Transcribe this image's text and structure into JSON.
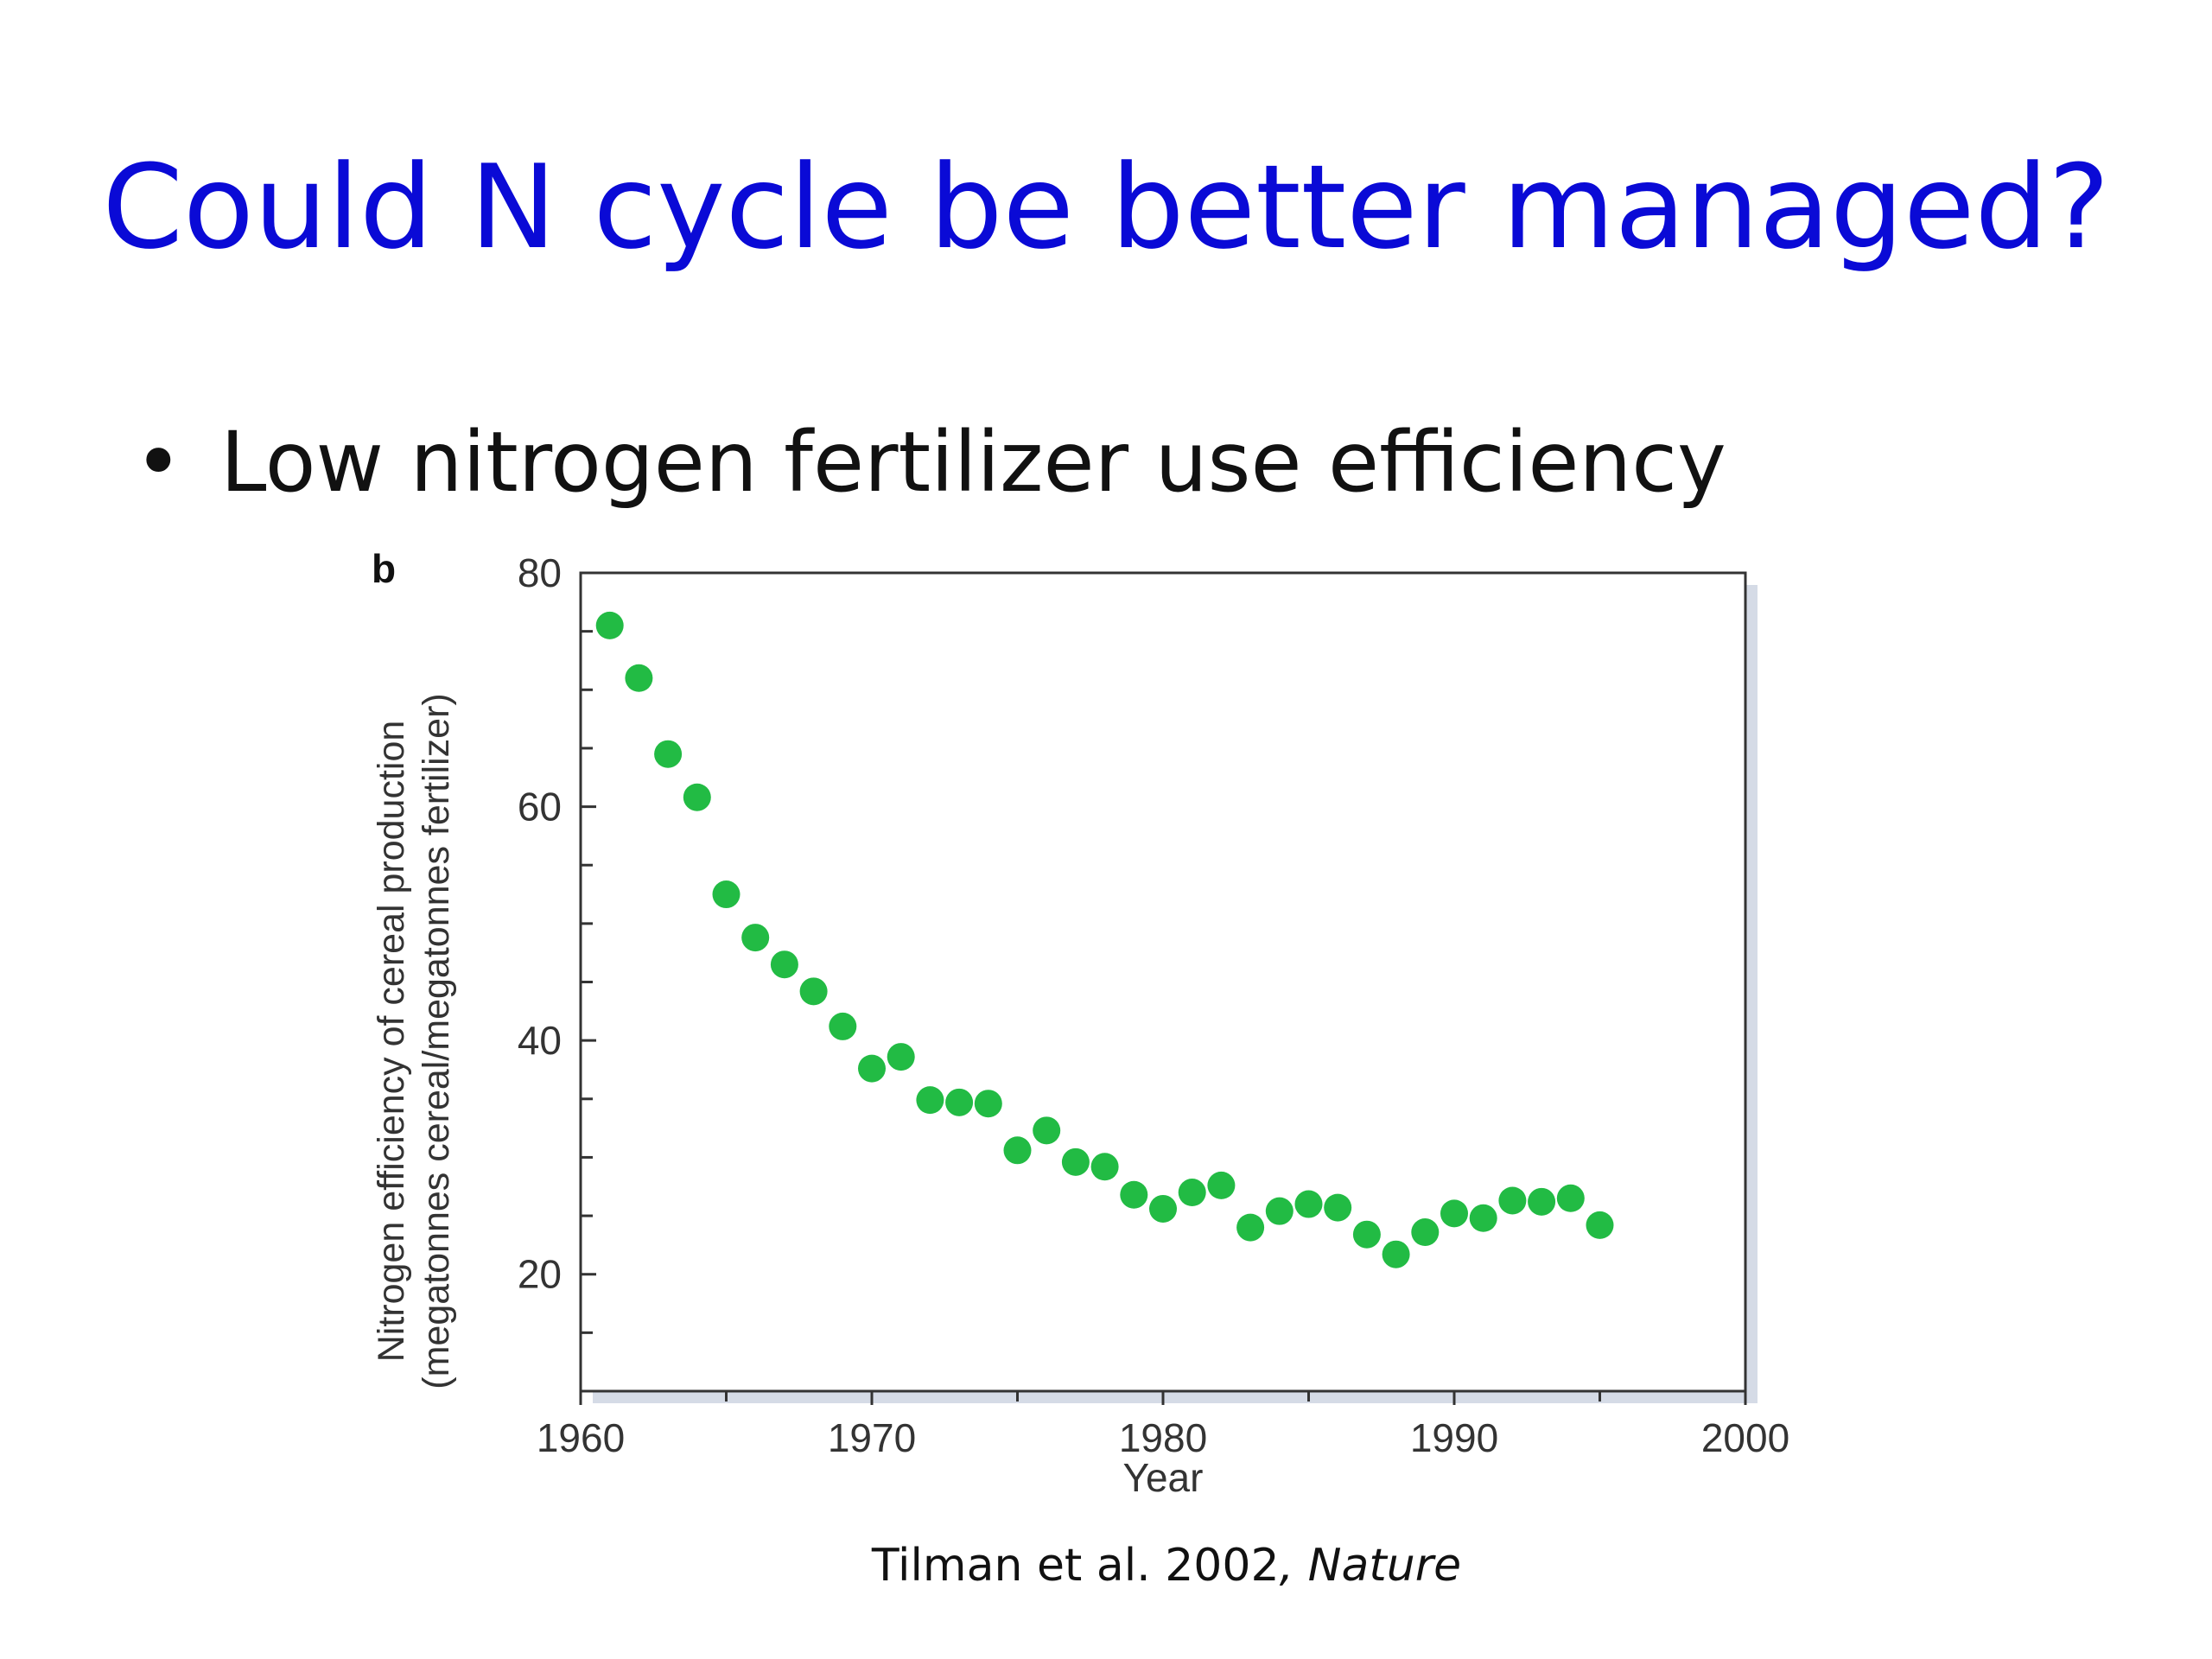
{
  "slide": {
    "title": "Could N cycle be better managed?",
    "bullet": "Low nitrogen fertilizer use efficiency",
    "citation_authors": "Tilman et al. 2002",
    "citation_sep": ", ",
    "citation_journal": "Nature"
  },
  "colors": {
    "title": "#0a0ad6",
    "points": "#22bb44",
    "frame_shadow": "#d5dbe6"
  },
  "chart_data": {
    "type": "scatter",
    "panel_label": "b",
    "title": "",
    "xlabel": "Year",
    "ylabel_line1": "Nitrogen efficiency of cereal production",
    "ylabel_line2": "(megatonnes cereal/megatonnes fertilizer)",
    "xlim": [
      1960,
      2000
    ],
    "ylim": [
      10,
      80
    ],
    "x_ticks": [
      1960,
      1970,
      1980,
      1990,
      2000
    ],
    "y_ticks": [
      20,
      40,
      60,
      80
    ],
    "grid": false,
    "x": [
      1961,
      1962,
      1963,
      1964,
      1965,
      1966,
      1967,
      1968,
      1969,
      1970,
      1971,
      1972,
      1973,
      1974,
      1975,
      1976,
      1977,
      1978,
      1979,
      1980,
      1981,
      1982,
      1983,
      1984,
      1985,
      1986,
      1987,
      1988,
      1989,
      1990,
      1991,
      1992,
      1993,
      1994,
      1995
    ],
    "y": [
      75.5,
      71.0,
      64.5,
      60.8,
      52.5,
      48.8,
      46.5,
      44.2,
      41.2,
      37.6,
      38.6,
      34.9,
      34.7,
      34.6,
      30.6,
      32.3,
      29.6,
      29.2,
      26.8,
      25.6,
      27.0,
      27.6,
      24.0,
      25.4,
      26.0,
      25.7,
      23.4,
      21.7,
      23.6,
      25.2,
      24.8,
      26.3,
      26.2,
      26.5,
      24.2
    ]
  }
}
